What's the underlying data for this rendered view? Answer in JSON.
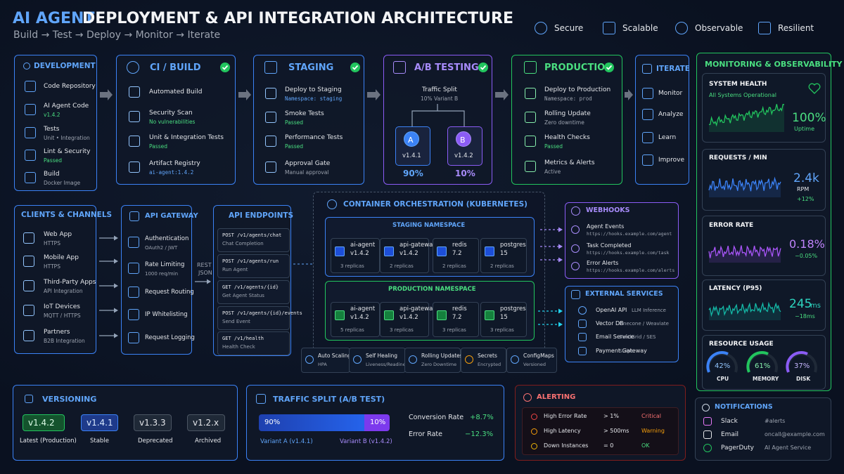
{
  "header": {
    "title_accent": "AI AGENT",
    "title": "DEPLOYMENT & API INTEGRATION ARCHITECTURE",
    "subtitle": "Build → Test → Deploy → Monitor → Iterate",
    "badges": [
      "Secure",
      "Scalable",
      "Observable",
      "Resilient"
    ]
  },
  "pipeline": {
    "development": {
      "title": "DEVELOPMENT",
      "items": [
        {
          "label": "Code Repository"
        },
        {
          "label": "AI Agent Code",
          "sub": "v1.4.2"
        },
        {
          "label": "Tests",
          "sub": "Unit • Integration"
        },
        {
          "label": "Lint & Security",
          "sub": "Passed"
        },
        {
          "label": "Build",
          "sub": "Docker Image"
        }
      ]
    },
    "ci_build": {
      "title": "CI / BUILD",
      "items": [
        {
          "label": "Automated Build"
        },
        {
          "label": "Security Scan",
          "sub": "No vulnerabilities"
        },
        {
          "label": "Unit & Integration Tests",
          "sub": "Passed"
        },
        {
          "label": "Artifact Registry",
          "sub": "ai-agent:1.4.2"
        }
      ]
    },
    "staging": {
      "title": "STAGING",
      "items": [
        {
          "label": "Deploy to Staging",
          "sub": "Namespace: staging"
        },
        {
          "label": "Smoke Tests",
          "sub": "Passed"
        },
        {
          "label": "Performance Tests",
          "sub": "Passed"
        },
        {
          "label": "Approval Gate",
          "sub": "Manual approval"
        }
      ]
    },
    "ab_testing": {
      "title": "A/B TESTING",
      "caption": "Traffic Split",
      "sub": "10% Variant B",
      "variants": [
        {
          "letter": "A",
          "version": "v1.4.1",
          "share": "90%"
        },
        {
          "letter": "B",
          "version": "v1.4.2",
          "share": "10%"
        }
      ]
    },
    "production": {
      "title": "PRODUCTION",
      "items": [
        {
          "label": "Deploy to Production",
          "sub": "Namespace: prod"
        },
        {
          "label": "Rolling Update",
          "sub": "Zero downtime"
        },
        {
          "label": "Health Checks",
          "sub": "Passed"
        },
        {
          "label": "Metrics & Alerts",
          "sub": "Active"
        }
      ]
    },
    "iterate": {
      "title": "ITERATE",
      "items": [
        {
          "label": "Monitor"
        },
        {
          "label": "Analyze"
        },
        {
          "label": "Learn"
        },
        {
          "label": "Improve"
        }
      ]
    }
  },
  "clients": {
    "title": "CLIENTS & CHANNELS",
    "items": [
      {
        "label": "Web App",
        "sub": "HTTPS"
      },
      {
        "label": "Mobile App",
        "sub": "HTTPS"
      },
      {
        "label": "Third-Party Apps",
        "sub": "API Integration"
      },
      {
        "label": "IoT Devices",
        "sub": "MQTT / HTTPS"
      },
      {
        "label": "Partners",
        "sub": "B2B Integration"
      }
    ]
  },
  "gateway": {
    "title": "API GATEWAY",
    "items": [
      {
        "label": "Authentication",
        "sub": "OAuth2 / JWT"
      },
      {
        "label": "Rate Limiting",
        "sub": "1000 req/min"
      },
      {
        "label": "Request Routing"
      },
      {
        "label": "IP Whitelisting"
      },
      {
        "label": "Request Logging"
      }
    ]
  },
  "connector": [
    "REST",
    "JSON"
  ],
  "endpoints": {
    "title": "API ENDPOINTS",
    "items": [
      {
        "route": "POST /v1/agents/chat",
        "desc": "Chat Completion"
      },
      {
        "route": "POST /v1/agents/run",
        "desc": "Run Agent"
      },
      {
        "route": "GET /v1/agents/{id}",
        "desc": "Get Agent Status"
      },
      {
        "route": "POST /v1/agents/{id}/events",
        "desc": "Send Event"
      },
      {
        "route": "GET /v1/health",
        "desc": "Health Check"
      }
    ]
  },
  "kubernetes": {
    "title": "CONTAINER ORCHESTRATION (KUBERNETES)",
    "namespaces": [
      {
        "title": "STAGING NAMESPACE",
        "pods": [
          {
            "name": "ai-agent",
            "version": "v1.4.2",
            "replicas": "3 replicas"
          },
          {
            "name": "api-gateway",
            "version": "v1.4.2",
            "replicas": "2 replicas"
          },
          {
            "name": "redis",
            "version": "7.2",
            "replicas": "2 replicas"
          },
          {
            "name": "postgres",
            "version": "15",
            "replicas": "2 replicas"
          }
        ]
      },
      {
        "title": "PRODUCTION NAMESPACE",
        "pods": [
          {
            "name": "ai-agent",
            "version": "v1.4.2",
            "replicas": "5 replicas"
          },
          {
            "name": "api-gateway",
            "version": "v1.4.2",
            "replicas": "3 replicas"
          },
          {
            "name": "redis",
            "version": "7.2",
            "replicas": "3 replicas"
          },
          {
            "name": "postgres",
            "version": "15",
            "replicas": "3 replicas"
          }
        ]
      }
    ],
    "features": [
      {
        "label": "Auto Scaling",
        "sub": "HPA"
      },
      {
        "label": "Self Healing",
        "sub": "Liveness/Readiness"
      },
      {
        "label": "Rolling Updates",
        "sub": "Zero Downtime"
      },
      {
        "label": "Secrets",
        "sub": "Encrypted"
      },
      {
        "label": "ConfigMaps",
        "sub": "Versioned"
      }
    ]
  },
  "webhooks": {
    "title": "WEBHOOKS",
    "items": [
      {
        "label": "Agent Events",
        "sub": "https://hooks.example.com/agent"
      },
      {
        "label": "Task Completed",
        "sub": "https://hooks.example.com/task"
      },
      {
        "label": "Error Alerts",
        "sub": "https://hooks.example.com/alerts"
      }
    ]
  },
  "external_services": {
    "title": "EXTERNAL SERVICES",
    "items": [
      {
        "label": "OpenAI API",
        "sub": "LLM Inference"
      },
      {
        "label": "Vector DB",
        "sub": "Pinecone / Weaviate"
      },
      {
        "label": "Email Service",
        "sub": "SendGrid / SES"
      },
      {
        "label": "Payment Gateway",
        "sub": "Stripe"
      }
    ]
  },
  "monitoring": {
    "title": "MONITORING & OBSERVABILITY",
    "system_health": {
      "title": "SYSTEM HEALTH",
      "status": "All Systems Operational",
      "value": "100%",
      "unit": "Uptime"
    },
    "requests": {
      "title": "REQUESTS / MIN",
      "value": "2.4k",
      "unit": "RPM",
      "change": "+12%"
    },
    "error_rate": {
      "title": "ERROR RATE",
      "value": "0.18%",
      "change": "−0.05%"
    },
    "latency": {
      "title": "LATENCY (P95)",
      "value": "245",
      "unit": "ms",
      "change": "−18ms"
    },
    "resources": {
      "title": "RESOURCE USAGE",
      "gauges": [
        {
          "value": "42%",
          "label": "CPU"
        },
        {
          "value": "61%",
          "label": "MEMORY"
        },
        {
          "value": "37%",
          "label": "DISK"
        }
      ]
    }
  },
  "versioning": {
    "title": "VERSIONING",
    "versions": [
      {
        "version": "v1.4.2",
        "status": "Latest (Production)"
      },
      {
        "version": "v1.4.1",
        "status": "Stable"
      },
      {
        "version": "v1.3.3",
        "status": "Deprecated"
      },
      {
        "version": "v1.2.x",
        "status": "Archived"
      }
    ]
  },
  "traffic_split": {
    "title": "TRAFFIC SPLIT (A/B TEST)",
    "a_share": "90%",
    "b_share": "10%",
    "a_label": "Variant A (v1.4.1)",
    "b_label": "Variant B (v1.4.2)",
    "metrics": [
      {
        "label": "Conversion Rate",
        "value": "+8.7%"
      },
      {
        "label": "Error Rate",
        "value": "−12.3%"
      }
    ]
  },
  "alerting": {
    "title": "ALERTING",
    "rows": [
      [
        "High Error Rate",
        "> 1%",
        "Critical"
      ],
      [
        "High Latency",
        "> 500ms",
        "Warning"
      ],
      [
        "Down Instances",
        "= 0",
        "OK"
      ]
    ]
  },
  "notifications": {
    "title": "NOTIFICATIONS",
    "rows": [
      [
        "Slack",
        "#alerts"
      ],
      [
        "Email",
        "oncall@example.com"
      ],
      [
        "PagerDuty",
        "AI Agent Service"
      ]
    ]
  }
}
